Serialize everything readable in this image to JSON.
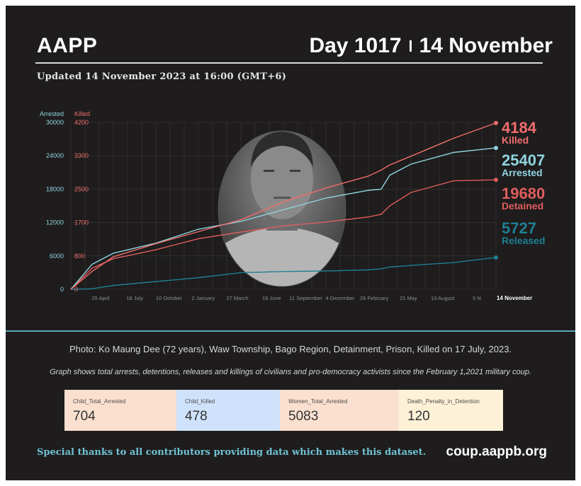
{
  "header": {
    "org": "AAPP",
    "day_label": "Day 1017",
    "date_label": "14 November",
    "updated": "Updated 14 November 2023 at 16:00 (GMT+6)"
  },
  "colors": {
    "background": "#1e1c1c",
    "arrested": "#8fd4e0",
    "killed": "#f26d6d",
    "detained": "#e05d5d",
    "released": "#1f7f93",
    "accent_rule": "#5aa7b8"
  },
  "chart_data": {
    "type": "line",
    "left_axis": {
      "label": "Arrested",
      "range": [
        0,
        30000
      ],
      "ticks": [
        0,
        6000,
        12000,
        18000,
        24000,
        30000
      ]
    },
    "right_axis": {
      "label": "Killed",
      "range": [
        0,
        4200
      ],
      "ticks": [
        "0",
        "800",
        "1700",
        "2500",
        "3300",
        "4200"
      ]
    },
    "x_ticks": [
      "25 April",
      "18 July",
      "10 October",
      "2 January",
      "27 March",
      "19 June",
      "11 September",
      "4 December",
      "26 February",
      "21 May",
      "13 August",
      "5 N"
    ],
    "x_end_label": "14 November",
    "x": [
      0,
      0.05,
      0.1,
      0.2,
      0.3,
      0.4,
      0.5,
      0.6,
      0.7,
      0.73,
      0.75,
      0.8,
      0.9,
      1.0
    ],
    "series": [
      {
        "name": "Arrested",
        "axis": "left",
        "values": [
          0,
          4500,
          6500,
          8300,
          10800,
          12200,
          14300,
          16400,
          17800,
          18000,
          20500,
          22500,
          24600,
          25407
        ]
      },
      {
        "name": "Killed",
        "axis": "right",
        "values": [
          0,
          450,
          820,
          1150,
          1450,
          1750,
          2200,
          2550,
          2850,
          3000,
          3130,
          3350,
          3800,
          4184
        ]
      },
      {
        "name": "Detained",
        "axis": "left",
        "values": [
          0,
          3800,
          5500,
          7100,
          9100,
          10300,
          11400,
          12100,
          13000,
          13500,
          15000,
          17400,
          19500,
          19680
        ]
      },
      {
        "name": "Released",
        "axis": "left",
        "values": [
          0,
          100,
          700,
          1400,
          2100,
          3000,
          3200,
          3300,
          3500,
          3700,
          4000,
          4300,
          4800,
          5727
        ]
      }
    ],
    "end_labels": [
      {
        "value": "4184",
        "name": "Killed",
        "color": "#f26d6d"
      },
      {
        "value": "25407",
        "name": "Arrested",
        "color": "#8fd4e0"
      },
      {
        "value": "19680",
        "name": "Detained",
        "color": "#e05d5d"
      },
      {
        "value": "5727",
        "name": "Released",
        "color": "#1f7f93"
      }
    ]
  },
  "captions": {
    "photo": "Photo: Ko Maung Dee (72 years), Waw Township, Bago Region, Detainment, Prison, Killed on 17 July, 2023.",
    "graph_note": "Graph shows total arrests, detentions, releases and killings of civilians and pro-democracy activists since the February 1,2021 military coup."
  },
  "stats": [
    {
      "label": "Child_Total_Arrested",
      "value": "704",
      "bg": "#fbe0d0"
    },
    {
      "label": "Child_Killed",
      "value": "478",
      "bg": "#cfe2fb"
    },
    {
      "label": "Women_Total_Arrested",
      "value": "5083",
      "bg": "#fbe0d0"
    },
    {
      "label": "Death_Penalty_in_Detention",
      "value": "120",
      "bg": "#fdf1d8"
    }
  ],
  "footer": {
    "thanks": "Special thanks to all contributors providing data which makes this dataset.",
    "site": "coup.aappb.org"
  }
}
